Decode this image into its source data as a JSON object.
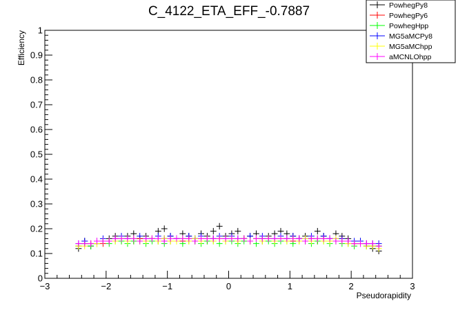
{
  "chart_data": {
    "type": "scatter",
    "title": "C_4122_ETA_EFF_-0.7887",
    "xlabel": "Pseudorapidity",
    "ylabel": "Efficiency",
    "xlim": [
      -3,
      3
    ],
    "ylim": [
      0,
      1
    ],
    "x_ticks": [
      -3,
      -2,
      -1,
      0,
      1,
      2,
      3
    ],
    "x_tick_labels": [
      "−3",
      "−2",
      "−1",
      "0",
      "1",
      "2",
      "3"
    ],
    "y_ticks": [
      0,
      0.1,
      0.2,
      0.3,
      0.4,
      0.5,
      0.6,
      0.7,
      0.8,
      0.9,
      1
    ],
    "y_tick_labels": [
      "0",
      "0.1",
      "0.2",
      "0.3",
      "0.4",
      "0.5",
      "0.6",
      "0.7",
      "0.8",
      "0.9",
      "1"
    ],
    "grid": false,
    "legend_position": "top-right",
    "series": [
      {
        "name": "PowhegPy8",
        "color": "#000000",
        "x": [
          -2.45,
          -2.35,
          -2.25,
          -2.15,
          -2.05,
          -1.95,
          -1.85,
          -1.75,
          -1.65,
          -1.55,
          -1.45,
          -1.35,
          -1.25,
          -1.15,
          -1.05,
          -0.95,
          -0.85,
          -0.75,
          -0.65,
          -0.55,
          -0.45,
          -0.35,
          -0.25,
          -0.15,
          -0.05,
          0.05,
          0.15,
          0.25,
          0.35,
          0.45,
          0.55,
          0.65,
          0.75,
          0.85,
          0.95,
          1.05,
          1.15,
          1.25,
          1.35,
          1.45,
          1.55,
          1.65,
          1.75,
          1.85,
          1.95,
          2.05,
          2.15,
          2.25,
          2.35,
          2.45
        ],
        "y": [
          0.12,
          0.15,
          0.13,
          0.14,
          0.15,
          0.16,
          0.17,
          0.16,
          0.17,
          0.18,
          0.16,
          0.17,
          0.16,
          0.19,
          0.2,
          0.17,
          0.16,
          0.18,
          0.17,
          0.16,
          0.18,
          0.17,
          0.19,
          0.21,
          0.17,
          0.18,
          0.19,
          0.16,
          0.17,
          0.18,
          0.16,
          0.17,
          0.18,
          0.19,
          0.18,
          0.17,
          0.16,
          0.17,
          0.16,
          0.19,
          0.17,
          0.16,
          0.18,
          0.17,
          0.16,
          0.14,
          0.15,
          0.13,
          0.12,
          0.11
        ]
      },
      {
        "name": "PowhegPy6",
        "color": "#ff0000",
        "x": [
          -2.45,
          -2.35,
          -2.25,
          -2.15,
          -2.05,
          -1.95,
          -1.85,
          -1.75,
          -1.65,
          -1.55,
          -1.45,
          -1.35,
          -1.25,
          -1.15,
          -1.05,
          -0.95,
          -0.85,
          -0.75,
          -0.65,
          -0.55,
          -0.45,
          -0.35,
          -0.25,
          -0.15,
          -0.05,
          0.05,
          0.15,
          0.25,
          0.35,
          0.45,
          0.55,
          0.65,
          0.75,
          0.85,
          0.95,
          1.05,
          1.15,
          1.25,
          1.35,
          1.45,
          1.55,
          1.65,
          1.75,
          1.85,
          1.95,
          2.05,
          2.15,
          2.25,
          2.35,
          2.45
        ],
        "y": [
          0.13,
          0.14,
          0.14,
          0.15,
          0.14,
          0.15,
          0.16,
          0.15,
          0.16,
          0.15,
          0.16,
          0.15,
          0.16,
          0.15,
          0.16,
          0.15,
          0.16,
          0.15,
          0.16,
          0.15,
          0.16,
          0.15,
          0.16,
          0.16,
          0.15,
          0.16,
          0.15,
          0.16,
          0.15,
          0.16,
          0.15,
          0.16,
          0.15,
          0.16,
          0.16,
          0.15,
          0.16,
          0.15,
          0.16,
          0.15,
          0.16,
          0.15,
          0.15,
          0.16,
          0.15,
          0.14,
          0.14,
          0.14,
          0.13,
          0.13
        ]
      },
      {
        "name": "PowhegHpp",
        "color": "#00ff00",
        "x": [
          -2.45,
          -2.35,
          -2.25,
          -2.15,
          -2.05,
          -1.95,
          -1.85,
          -1.75,
          -1.65,
          -1.55,
          -1.45,
          -1.35,
          -1.25,
          -1.15,
          -1.05,
          -0.95,
          -0.85,
          -0.75,
          -0.65,
          -0.55,
          -0.45,
          -0.35,
          -0.25,
          -0.15,
          -0.05,
          0.05,
          0.15,
          0.25,
          0.35,
          0.45,
          0.55,
          0.65,
          0.75,
          0.85,
          0.95,
          1.05,
          1.15,
          1.25,
          1.35,
          1.45,
          1.55,
          1.65,
          1.75,
          1.85,
          1.95,
          2.05,
          2.15,
          2.25,
          2.35,
          2.45
        ],
        "y": [
          0.13,
          0.14,
          0.13,
          0.14,
          0.15,
          0.14,
          0.15,
          0.15,
          0.14,
          0.15,
          0.15,
          0.14,
          0.15,
          0.15,
          0.14,
          0.15,
          0.15,
          0.14,
          0.15,
          0.15,
          0.14,
          0.15,
          0.15,
          0.14,
          0.15,
          0.15,
          0.14,
          0.15,
          0.15,
          0.14,
          0.15,
          0.15,
          0.14,
          0.15,
          0.15,
          0.14,
          0.15,
          0.15,
          0.14,
          0.15,
          0.15,
          0.14,
          0.15,
          0.14,
          0.14,
          0.13,
          0.14,
          0.13,
          0.13,
          0.13
        ]
      },
      {
        "name": "MG5aMCPy8",
        "color": "#0000ff",
        "x": [
          -2.45,
          -2.35,
          -2.25,
          -2.15,
          -2.05,
          -1.95,
          -1.85,
          -1.75,
          -1.65,
          -1.55,
          -1.45,
          -1.35,
          -1.25,
          -1.15,
          -1.05,
          -0.95,
          -0.85,
          -0.75,
          -0.65,
          -0.55,
          -0.45,
          -0.35,
          -0.25,
          -0.15,
          -0.05,
          0.05,
          0.15,
          0.25,
          0.35,
          0.45,
          0.55,
          0.65,
          0.75,
          0.85,
          0.95,
          1.05,
          1.15,
          1.25,
          1.35,
          1.45,
          1.55,
          1.65,
          1.75,
          1.85,
          1.95,
          2.05,
          2.15,
          2.25,
          2.35,
          2.45
        ],
        "y": [
          0.14,
          0.15,
          0.14,
          0.15,
          0.16,
          0.15,
          0.16,
          0.17,
          0.16,
          0.16,
          0.17,
          0.16,
          0.16,
          0.17,
          0.16,
          0.17,
          0.16,
          0.16,
          0.17,
          0.16,
          0.17,
          0.16,
          0.16,
          0.17,
          0.16,
          0.17,
          0.16,
          0.16,
          0.17,
          0.16,
          0.17,
          0.16,
          0.16,
          0.17,
          0.16,
          0.17,
          0.16,
          0.16,
          0.17,
          0.16,
          0.17,
          0.16,
          0.16,
          0.16,
          0.15,
          0.15,
          0.15,
          0.14,
          0.14,
          0.14
        ]
      },
      {
        "name": "MG5aMChpp",
        "color": "#ffff00",
        "x": [
          -2.45,
          -2.35,
          -2.25,
          -2.15,
          -2.05,
          -1.95,
          -1.85,
          -1.75,
          -1.65,
          -1.55,
          -1.45,
          -1.35,
          -1.25,
          -1.15,
          -1.05,
          -0.95,
          -0.85,
          -0.75,
          -0.65,
          -0.55,
          -0.45,
          -0.35,
          -0.25,
          -0.15,
          -0.05,
          0.05,
          0.15,
          0.25,
          0.35,
          0.45,
          0.55,
          0.65,
          0.75,
          0.85,
          0.95,
          1.05,
          1.15,
          1.25,
          1.35,
          1.45,
          1.55,
          1.65,
          1.75,
          1.85,
          1.95,
          2.05,
          2.15,
          2.25,
          2.35,
          2.45
        ],
        "y": [
          0.13,
          0.13,
          0.14,
          0.14,
          0.15,
          0.15,
          0.15,
          0.16,
          0.15,
          0.16,
          0.15,
          0.15,
          0.16,
          0.15,
          0.16,
          0.15,
          0.15,
          0.16,
          0.15,
          0.16,
          0.15,
          0.16,
          0.15,
          0.16,
          0.15,
          0.16,
          0.15,
          0.16,
          0.15,
          0.16,
          0.15,
          0.16,
          0.15,
          0.16,
          0.15,
          0.16,
          0.15,
          0.16,
          0.15,
          0.16,
          0.15,
          0.15,
          0.16,
          0.15,
          0.14,
          0.14,
          0.14,
          0.13,
          0.13,
          0.12
        ]
      },
      {
        "name": "aMCNLOhpp",
        "color": "#ff00ff",
        "x": [
          -2.45,
          -2.35,
          -2.25,
          -2.15,
          -2.05,
          -1.95,
          -1.85,
          -1.75,
          -1.65,
          -1.55,
          -1.45,
          -1.35,
          -1.25,
          -1.15,
          -1.05,
          -0.95,
          -0.85,
          -0.75,
          -0.65,
          -0.55,
          -0.45,
          -0.35,
          -0.25,
          -0.15,
          -0.05,
          0.05,
          0.15,
          0.25,
          0.35,
          0.45,
          0.55,
          0.65,
          0.75,
          0.85,
          0.95,
          1.05,
          1.15,
          1.25,
          1.35,
          1.45,
          1.55,
          1.65,
          1.75,
          1.85,
          1.95,
          2.05,
          2.15,
          2.25,
          2.35,
          2.45
        ],
        "y": [
          0.14,
          0.14,
          0.14,
          0.15,
          0.15,
          0.15,
          0.16,
          0.16,
          0.16,
          0.16,
          0.15,
          0.16,
          0.16,
          0.16,
          0.15,
          0.16,
          0.16,
          0.16,
          0.16,
          0.15,
          0.16,
          0.16,
          0.16,
          0.16,
          0.16,
          0.16,
          0.16,
          0.16,
          0.15,
          0.16,
          0.16,
          0.16,
          0.16,
          0.16,
          0.16,
          0.16,
          0.16,
          0.15,
          0.16,
          0.16,
          0.16,
          0.16,
          0.15,
          0.15,
          0.15,
          0.14,
          0.14,
          0.14,
          0.14,
          0.13
        ]
      }
    ]
  }
}
